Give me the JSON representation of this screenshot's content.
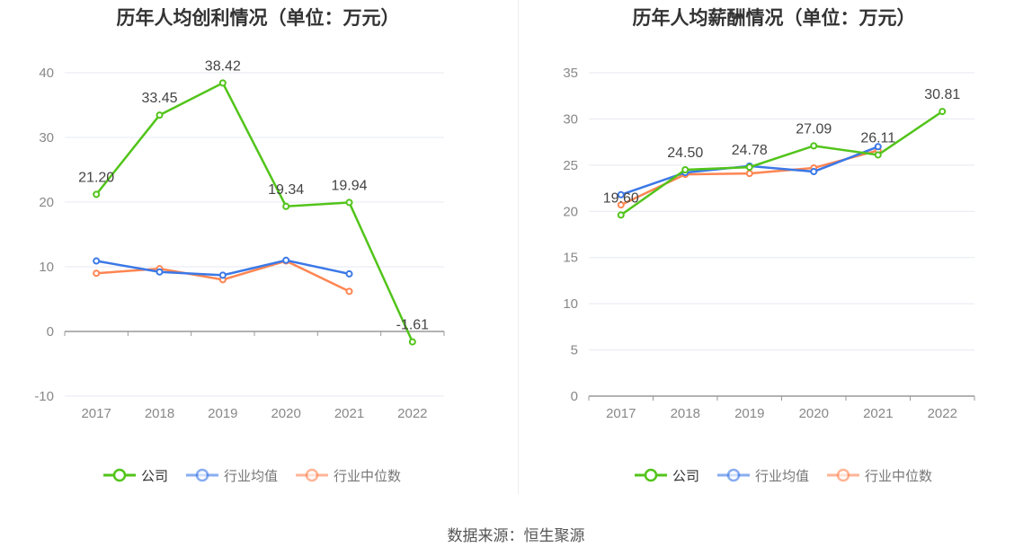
{
  "chart_data": [
    {
      "type": "line",
      "title": "历年人均创利情况（单位：万元）",
      "categories": [
        "2017",
        "2018",
        "2019",
        "2020",
        "2021",
        "2022"
      ],
      "ylim": [
        -10,
        40
      ],
      "yticks": [
        -10,
        0,
        10,
        20,
        30,
        40
      ],
      "grid": true,
      "legend_position": "bottom",
      "series": [
        {
          "name": "公司",
          "color": "#52c41a",
          "values": [
            21.2,
            33.45,
            38.42,
            19.34,
            19.94,
            -1.61
          ],
          "labels": [
            "21.20",
            "33.45",
            "38.42",
            "19.34",
            "19.94",
            "-1.61"
          ]
        },
        {
          "name": "行业均值",
          "color": "#3b78e7",
          "values": [
            10.9,
            9.2,
            8.7,
            11.0,
            8.9,
            null
          ]
        },
        {
          "name": "行业中位数",
          "color": "#ff8552",
          "values": [
            9.0,
            9.7,
            8.0,
            10.9,
            6.2,
            null
          ]
        }
      ]
    },
    {
      "type": "line",
      "title": "历年人均薪酬情况（单位：万元）",
      "categories": [
        "2017",
        "2018",
        "2019",
        "2020",
        "2021",
        "2022"
      ],
      "ylim": [
        0,
        35
      ],
      "yticks": [
        0,
        5,
        10,
        15,
        20,
        25,
        30,
        35
      ],
      "grid": true,
      "legend_position": "bottom",
      "series": [
        {
          "name": "公司",
          "color": "#52c41a",
          "values": [
            19.6,
            24.5,
            24.78,
            27.09,
            26.11,
            30.81
          ],
          "labels": [
            "19.60",
            "24.50",
            "24.78",
            "27.09",
            "26.11",
            "30.81"
          ]
        },
        {
          "name": "行业均值",
          "color": "#3b78e7",
          "values": [
            21.8,
            24.2,
            24.9,
            24.3,
            27.0,
            null
          ]
        },
        {
          "name": "行业中位数",
          "color": "#ff8552",
          "values": [
            20.7,
            24.0,
            24.1,
            24.7,
            26.6,
            null
          ]
        }
      ]
    }
  ],
  "source": "数据来源：恒生聚源"
}
